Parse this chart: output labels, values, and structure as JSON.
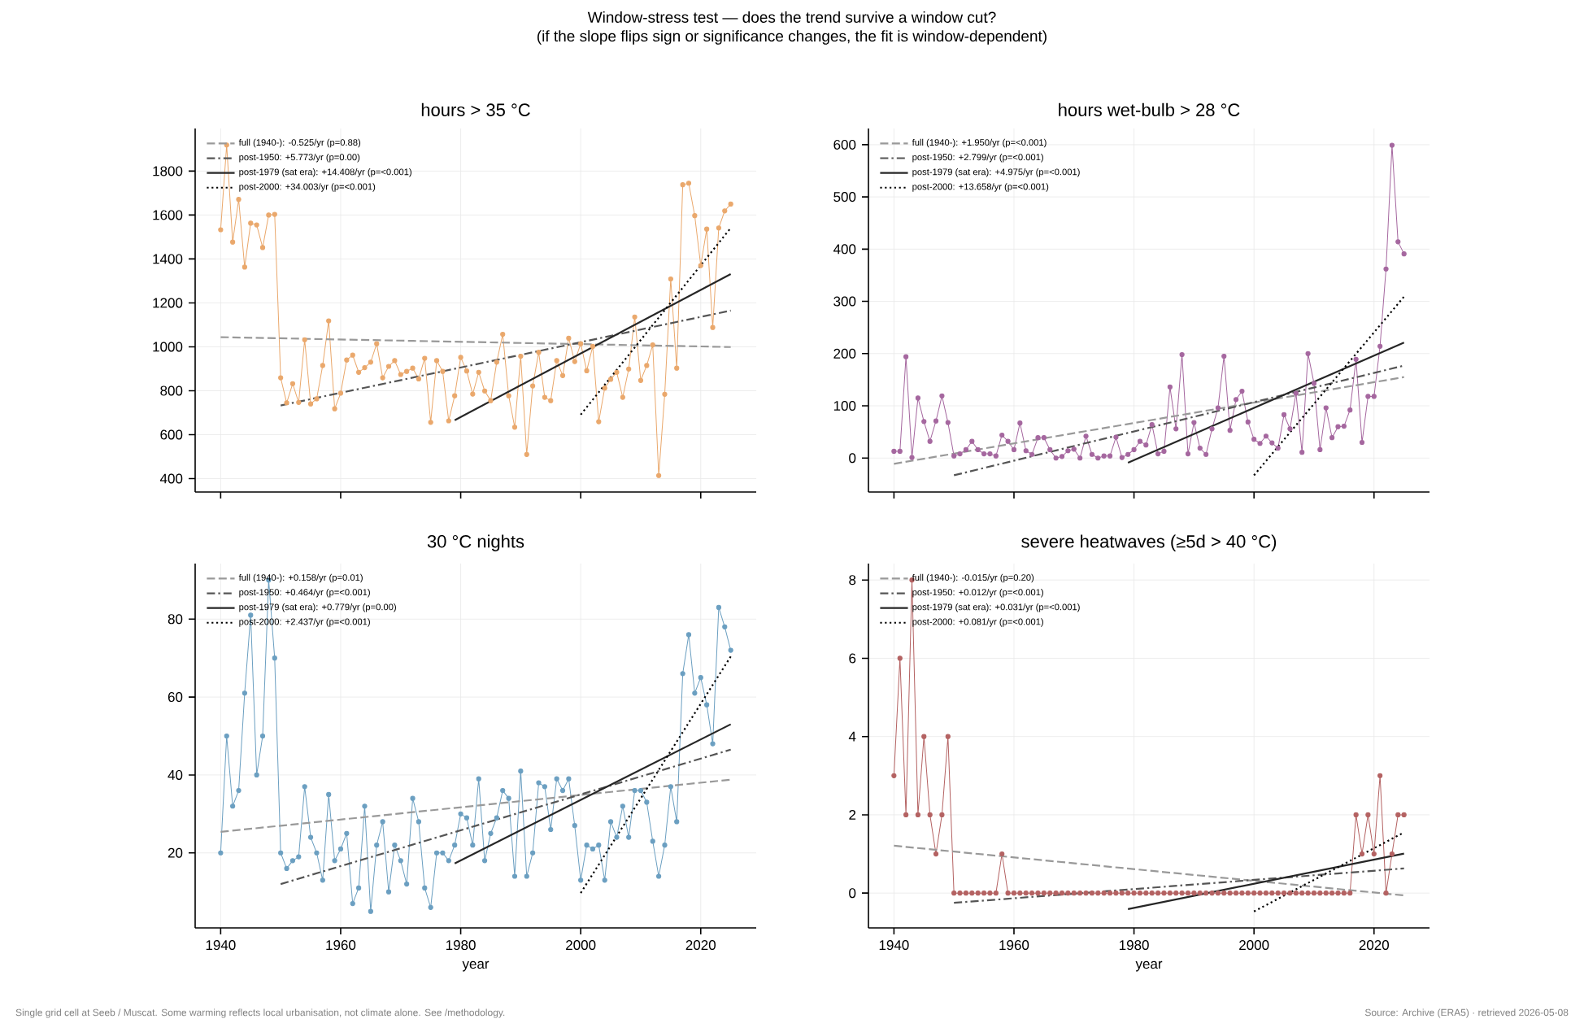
{
  "chart_data": [
    {
      "type": "other",
      "title": "Window-stress test — does the trend survive a window cut?",
      "subtitle": "(if the slope flips sign or significance changes, the fit is window-dependent)",
      "annotations": [
        "Single grid cell at Seeb / Muscat. Some warming reflects local urbanisation, not climate alone. See /methodology.",
        "Source: Archive (ERA5) · retrieved 2026-05-08"
      ]
    },
    {
      "type": "line",
      "title": "hours > 35 °C",
      "xlim": [
        1935.75,
        2029.25
      ],
      "ylim": [
        339,
        1994
      ],
      "xticks": [
        1940,
        1960,
        1980,
        2000,
        2020
      ],
      "yticks": [
        400,
        600,
        800,
        1000,
        1200,
        1400,
        1600,
        1800
      ],
      "tick_labels": "y",
      "grid": true,
      "legend": "top left",
      "x": [
        1940,
        1941,
        1942,
        1943,
        1944,
        1945,
        1946,
        1947,
        1948,
        1949,
        1950,
        1951,
        1952,
        1953,
        1954,
        1955,
        1956,
        1957,
        1958,
        1959,
        1960,
        1961,
        1962,
        1963,
        1964,
        1965,
        1966,
        1967,
        1968,
        1969,
        1970,
        1971,
        1972,
        1973,
        1974,
        1975,
        1976,
        1977,
        1978,
        1979,
        1980,
        1981,
        1982,
        1983,
        1984,
        1985,
        1986,
        1987,
        1988,
        1989,
        1990,
        1991,
        1992,
        1993,
        1994,
        1995,
        1996,
        1997,
        1998,
        1999,
        2000,
        2001,
        2002,
        2003,
        2004,
        2005,
        2006,
        2007,
        2008,
        2009,
        2010,
        2011,
        2012,
        2013,
        2014,
        2015,
        2016,
        2017,
        2018,
        2019,
        2020,
        2021,
        2022,
        2023,
        2024,
        2025
      ],
      "series": [
        {
          "type": "line",
          "color": "#eaa86c",
          "marker": "circle",
          "line_style": "solid",
          "values": [
            1533,
            1919,
            1477,
            1671,
            1363,
            1563,
            1555,
            1452,
            1600,
            1603,
            859,
            745,
            832,
            747,
            1032,
            740,
            763,
            915,
            1118,
            718,
            789,
            940,
            962,
            884,
            905,
            930,
            1014,
            859,
            911,
            937,
            874,
            888,
            903,
            854,
            948,
            656,
            937,
            888,
            663,
            777,
            952,
            890,
            785,
            884,
            799,
            755,
            930,
            1057,
            777,
            634,
            957,
            510,
            822,
            975,
            770,
            755,
            937,
            869,
            1039,
            933,
            1014,
            891,
            1002,
            659,
            812,
            852,
            884,
            770,
            899,
            1136,
            847,
            915,
            1009,
            414,
            784,
            1309,
            903,
            1738,
            1745,
            1597,
            1370,
            1536,
            1088,
            1541,
            1619,
            1650
          ]
        },
        {
          "type": "line",
          "name": "full (1940-): -0.525/yr (p=0.88)",
          "color": "#999999",
          "marker": "none",
          "line_style": "dashed",
          "x": [
            1940,
            2025
          ],
          "values": [
            1044,
            999
          ]
        },
        {
          "type": "line",
          "name": "post-1950: +5.773/yr (p=0.00)",
          "color": "#555555",
          "marker": "none",
          "line_style": "dashdot",
          "x": [
            1950,
            2025
          ],
          "values": [
            733,
            1165
          ]
        },
        {
          "type": "line",
          "name": "post-1979 (sat era): +14.408/yr (p=<0.001)",
          "color": "#262626",
          "marker": "none",
          "line_style": "solid",
          "x": [
            1979,
            2025
          ],
          "values": [
            666,
            1331
          ]
        },
        {
          "type": "line",
          "name": "post-2000: +34.003/yr (p=<0.001)",
          "color": "#000000",
          "marker": "none",
          "line_style": "dotted",
          "x": [
            2000,
            2025
          ],
          "values": [
            691,
            1541
          ]
        }
      ]
    },
    {
      "type": "line",
      "title": "hours wet-bulb > 28 °C",
      "xlim": [
        1935.75,
        2029.25
      ],
      "ylim": [
        -65,
        631
      ],
      "xticks": [
        1940,
        1960,
        1980,
        2000,
        2020
      ],
      "yticks": [
        0,
        100,
        200,
        300,
        400,
        500,
        600
      ],
      "tick_labels": "y",
      "grid": true,
      "legend": "top left",
      "x": [
        1940,
        1941,
        1942,
        1943,
        1944,
        1945,
        1946,
        1947,
        1948,
        1949,
        1950,
        1951,
        1952,
        1953,
        1954,
        1955,
        1956,
        1957,
        1958,
        1959,
        1960,
        1961,
        1962,
        1963,
        1964,
        1965,
        1966,
        1967,
        1968,
        1969,
        1970,
        1971,
        1972,
        1973,
        1974,
        1975,
        1976,
        1977,
        1978,
        1979,
        1980,
        1981,
        1982,
        1983,
        1984,
        1985,
        1986,
        1987,
        1988,
        1989,
        1990,
        1991,
        1992,
        1993,
        1994,
        1995,
        1996,
        1997,
        1998,
        1999,
        2000,
        2001,
        2002,
        2003,
        2004,
        2005,
        2006,
        2007,
        2008,
        2009,
        2010,
        2011,
        2012,
        2013,
        2014,
        2015,
        2016,
        2017,
        2018,
        2019,
        2020,
        2021,
        2022,
        2023,
        2024,
        2025
      ],
      "series": [
        {
          "type": "line",
          "color": "#a5679f",
          "marker": "circle",
          "line_style": "solid",
          "values": [
            13,
            13,
            194,
            1,
            115,
            70,
            32,
            71,
            119,
            68,
            4,
            8,
            16,
            32,
            16,
            8,
            8,
            4,
            44,
            32,
            16,
            67,
            14,
            7,
            39,
            39,
            16,
            0,
            3,
            14,
            17,
            0,
            42,
            7,
            0,
            4,
            4,
            40,
            1,
            7,
            16,
            32,
            25,
            64,
            8,
            13,
            136,
            56,
            198,
            8,
            68,
            19,
            7,
            56,
            96,
            195,
            53,
            112,
            128,
            69,
            36,
            28,
            42,
            29,
            19,
            83,
            56,
            124,
            11,
            200,
            143,
            16,
            96,
            39,
            60,
            61,
            92,
            189,
            30,
            118,
            118,
            214,
            362,
            599,
            414,
            391
          ]
        },
        {
          "type": "line",
          "name": "full (1940-): +1.950/yr (p=<0.001)",
          "color": "#999999",
          "marker": "none",
          "line_style": "dashed",
          "x": [
            1940,
            2025
          ],
          "values": [
            -11,
            155
          ]
        },
        {
          "type": "line",
          "name": "post-1950: +2.799/yr (p=<0.001)",
          "color": "#555555",
          "marker": "none",
          "line_style": "dashdot",
          "x": [
            1950,
            2025
          ],
          "values": [
            -33,
            177
          ]
        },
        {
          "type": "line",
          "name": "post-1979 (sat era): +4.975/yr (p=<0.001)",
          "color": "#262626",
          "marker": "none",
          "line_style": "solid",
          "x": [
            1979,
            2025
          ],
          "values": [
            -9,
            221
          ]
        },
        {
          "type": "line",
          "name": "post-2000: +13.658/yr (p=<0.001)",
          "color": "#000000",
          "marker": "none",
          "line_style": "dotted",
          "x": [
            2000,
            2025
          ],
          "values": [
            -33,
            309
          ]
        }
      ]
    },
    {
      "type": "line",
      "title": "30 °C nights",
      "xlabel": "year",
      "xlim": [
        1935.75,
        2029.25
      ],
      "ylim": [
        0.75,
        94.25
      ],
      "xticks": [
        1940,
        1960,
        1980,
        2000,
        2020
      ],
      "yticks": [
        20,
        40,
        60,
        80
      ],
      "grid": true,
      "legend": "top left",
      "x": [
        1940,
        1941,
        1942,
        1943,
        1944,
        1945,
        1946,
        1947,
        1948,
        1949,
        1950,
        1951,
        1952,
        1953,
        1954,
        1955,
        1956,
        1957,
        1958,
        1959,
        1960,
        1961,
        1962,
        1963,
        1964,
        1965,
        1966,
        1967,
        1968,
        1969,
        1970,
        1971,
        1972,
        1973,
        1974,
        1975,
        1976,
        1977,
        1978,
        1979,
        1980,
        1981,
        1982,
        1983,
        1984,
        1985,
        1986,
        1987,
        1988,
        1989,
        1990,
        1991,
        1992,
        1993,
        1994,
        1995,
        1996,
        1997,
        1998,
        1999,
        2000,
        2001,
        2002,
        2003,
        2004,
        2005,
        2006,
        2007,
        2008,
        2009,
        2010,
        2011,
        2012,
        2013,
        2014,
        2015,
        2016,
        2017,
        2018,
        2019,
        2020,
        2021,
        2022,
        2023,
        2024,
        2025
      ],
      "series": [
        {
          "type": "line",
          "color": "#6b9fc1",
          "marker": "circle",
          "line_style": "solid",
          "values": [
            20,
            50,
            32,
            36,
            61,
            81,
            40,
            50,
            90,
            70,
            20,
            16,
            18,
            19,
            37,
            24,
            20,
            13,
            35,
            18,
            21,
            25,
            7,
            11,
            32,
            5,
            22,
            28,
            10,
            22,
            18,
            12,
            34,
            28,
            11,
            6,
            20,
            20,
            18,
            22,
            30,
            29,
            22,
            39,
            18,
            25,
            29,
            36,
            34,
            14,
            41,
            14,
            20,
            38,
            37,
            26,
            39,
            36,
            39,
            27,
            13,
            22,
            21,
            22,
            13,
            28,
            24,
            32,
            24,
            36,
            36,
            33,
            23,
            14,
            22,
            37,
            28,
            66,
            76,
            61,
            65,
            58,
            48,
            83,
            78,
            72
          ]
        },
        {
          "type": "line",
          "name": "full (1940-): +0.158/yr (p=0.01)",
          "color": "#999999",
          "marker": "none",
          "line_style": "dashed",
          "x": [
            1940,
            2025
          ],
          "values": [
            25.4,
            38.8
          ]
        },
        {
          "type": "line",
          "name": "post-1950: +0.464/yr (p=<0.001)",
          "color": "#555555",
          "marker": "none",
          "line_style": "dashdot",
          "x": [
            1950,
            2025
          ],
          "values": [
            12,
            46.5
          ]
        },
        {
          "type": "line",
          "name": "post-1979 (sat era): +0.779/yr (p=0.00)",
          "color": "#262626",
          "marker": "none",
          "line_style": "solid",
          "x": [
            1979,
            2025
          ],
          "values": [
            17.3,
            53
          ]
        },
        {
          "type": "line",
          "name": "post-2000: +2.437/yr (p=<0.001)",
          "color": "#000000",
          "marker": "none",
          "line_style": "dotted",
          "x": [
            2000,
            2025
          ],
          "values": [
            9.7,
            70.4
          ]
        }
      ]
    },
    {
      "type": "line",
      "title": "severe heatwaves (≥5d > 40 °C)",
      "xlabel": "year",
      "xlim": [
        1935.75,
        2029.25
      ],
      "ylim": [
        -0.89,
        8.42
      ],
      "xticks": [
        1940,
        1960,
        1980,
        2000,
        2020
      ],
      "yticks": [
        0,
        2,
        4,
        6,
        8
      ],
      "grid": true,
      "legend": "top left",
      "x": [
        1940,
        1941,
        1942,
        1943,
        1944,
        1945,
        1946,
        1947,
        1948,
        1949,
        1950,
        1951,
        1952,
        1953,
        1954,
        1955,
        1956,
        1957,
        1958,
        1959,
        1960,
        1961,
        1962,
        1963,
        1964,
        1965,
        1966,
        1967,
        1968,
        1969,
        1970,
        1971,
        1972,
        1973,
        1974,
        1975,
        1976,
        1977,
        1978,
        1979,
        1980,
        1981,
        1982,
        1983,
        1984,
        1985,
        1986,
        1987,
        1988,
        1989,
        1990,
        1991,
        1992,
        1993,
        1994,
        1995,
        1996,
        1997,
        1998,
        1999,
        2000,
        2001,
        2002,
        2003,
        2004,
        2005,
        2006,
        2007,
        2008,
        2009,
        2010,
        2011,
        2012,
        2013,
        2014,
        2015,
        2016,
        2017,
        2018,
        2019,
        2020,
        2021,
        2022,
        2023,
        2024,
        2025
      ],
      "series": [
        {
          "type": "line",
          "color": "#b46262",
          "marker": "circle",
          "line_style": "solid",
          "values": [
            3,
            6,
            2,
            8,
            2,
            4,
            2,
            1,
            2,
            4,
            0,
            0,
            0,
            0,
            0,
            0,
            0,
            0,
            1,
            0,
            0,
            0,
            0,
            0,
            0,
            0,
            0,
            0,
            0,
            0,
            0,
            0,
            0,
            0,
            0,
            0,
            0,
            0,
            0,
            0,
            0,
            0,
            0,
            0,
            0,
            0,
            0,
            0,
            0,
            0,
            0,
            0,
            0,
            0,
            0,
            0,
            0,
            0,
            0,
            0,
            0,
            0,
            0,
            0,
            0,
            0,
            0,
            0,
            0,
            0,
            0,
            0,
            0,
            0,
            0,
            0,
            0,
            2,
            1,
            2,
            1,
            3,
            0,
            1,
            2,
            2
          ]
        },
        {
          "type": "line",
          "name": "full (1940-): -0.015/yr (p=0.20)",
          "color": "#999999",
          "marker": "none",
          "line_style": "dashed",
          "x": [
            1940,
            2025
          ],
          "values": [
            1.21,
            -0.06
          ]
        },
        {
          "type": "line",
          "name": "post-1950: +0.012/yr (p=<0.001)",
          "color": "#555555",
          "marker": "none",
          "line_style": "dashdot",
          "x": [
            1950,
            2025
          ],
          "values": [
            -0.25,
            0.63
          ]
        },
        {
          "type": "line",
          "name": "post-1979 (sat era): +0.031/yr (p=<0.001)",
          "color": "#262626",
          "marker": "none",
          "line_style": "solid",
          "x": [
            1979,
            2025
          ],
          "values": [
            -0.41,
            1.01
          ]
        },
        {
          "type": "line",
          "name": "post-2000: +0.081/yr (p=<0.001)",
          "color": "#000000",
          "marker": "none",
          "line_style": "dotted",
          "x": [
            2000,
            2025
          ],
          "values": [
            -0.47,
            1.55
          ]
        }
      ]
    }
  ]
}
